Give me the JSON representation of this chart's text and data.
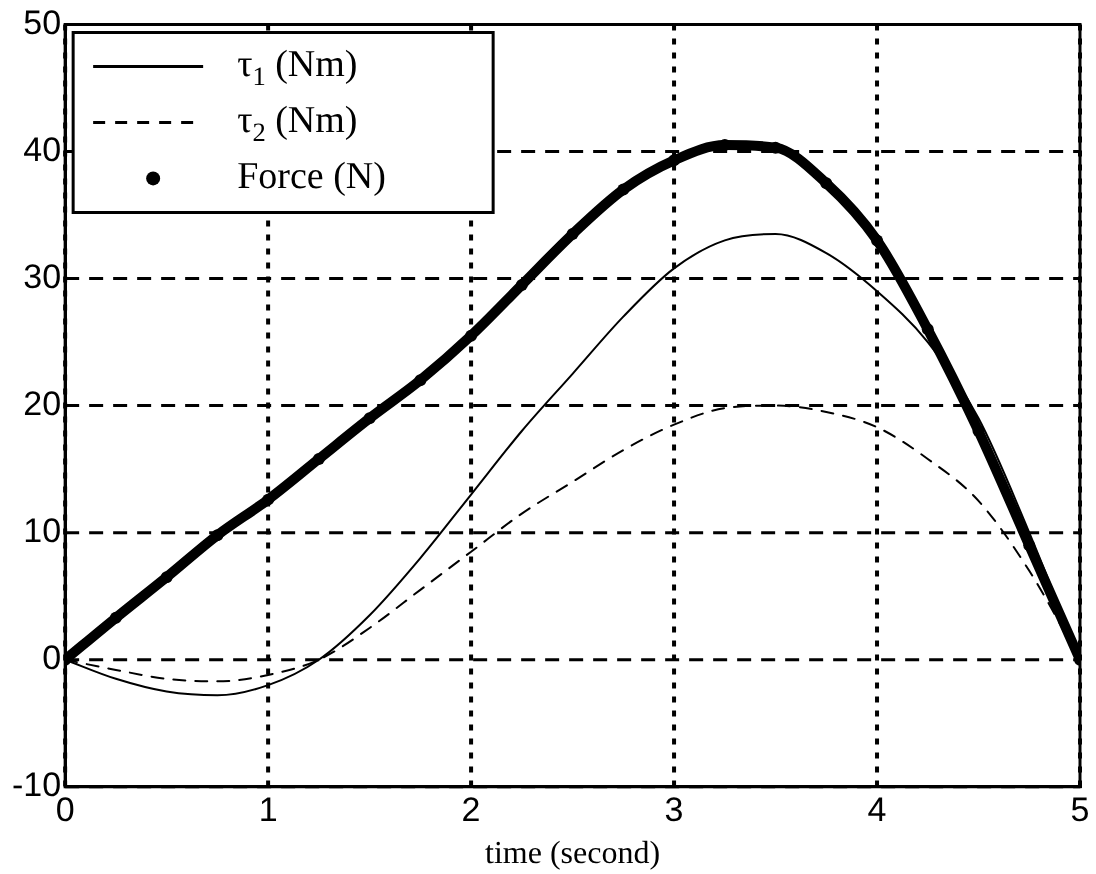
{
  "chart_data": {
    "type": "line",
    "xlabel": "time (second)",
    "xlim": [
      0,
      5
    ],
    "xticks": [
      0,
      1,
      2,
      3,
      4,
      5
    ],
    "ylim": [
      -10,
      50
    ],
    "yticks": [
      -10,
      0,
      10,
      20,
      30,
      40,
      50
    ],
    "grid": true,
    "legend": "top left",
    "x": [
      0,
      0.25,
      0.5,
      0.75,
      1,
      1.25,
      1.5,
      1.75,
      2,
      2.25,
      2.5,
      2.75,
      3,
      3.25,
      3.5,
      3.75,
      4,
      4.25,
      4.5,
      4.75,
      5
    ],
    "series": [
      {
        "name": "τ$_{1}$ (Nm)",
        "color": "#000000",
        "line_style": "solid",
        "values": [
          0,
          -1.5,
          -2.5,
          -2.8,
          -2,
          0,
          3.5,
          8,
          13,
          18,
          22.5,
          27,
          30.8,
          33,
          33.5,
          32,
          29,
          25,
          19,
          10,
          0
        ]
      },
      {
        "name": "τ$_{2}$ (Nm)",
        "color": "#000000",
        "line_style": "dashed",
        "values": [
          0,
          -0.8,
          -1.5,
          -1.7,
          -1.2,
          0,
          2.5,
          5.5,
          8.5,
          11.5,
          14,
          16.5,
          18.5,
          19.8,
          20,
          19.5,
          18.3,
          15.8,
          12.5,
          7,
          0
        ]
      },
      {
        "name": "Force (N)",
        "color": "#000000",
        "line_style": "solid",
        "marker": "circle",
        "values": [
          0,
          3.3,
          6.5,
          9.8,
          12.6,
          15.8,
          19,
          22,
          25.5,
          29.5,
          33.5,
          37,
          39.3,
          40.5,
          40.3,
          37.5,
          33,
          26,
          18,
          9,
          0
        ]
      }
    ]
  }
}
